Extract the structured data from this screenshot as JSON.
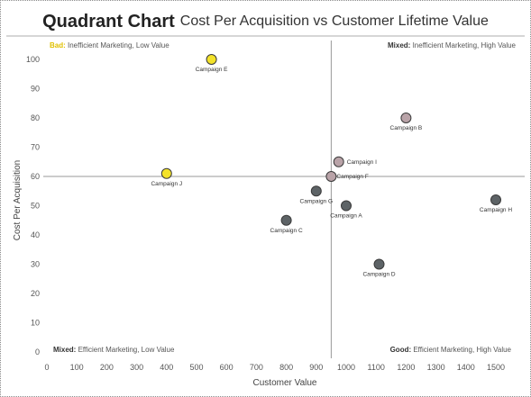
{
  "header": {
    "title": "Quadrant Chart",
    "subtitle": "Cost Per Acquisition vs Customer Lifetime Value"
  },
  "quadrants": {
    "top_left": {
      "key": "Bad:",
      "text": "Inefficient Marketing, Low Value",
      "key_color": "#e0c000"
    },
    "top_right": {
      "key": "Mixed:",
      "text": "Inefficient Marketing, High Value"
    },
    "bottom_left": {
      "key": "Mixed:",
      "text": "Efficient Marketing, Low Value"
    },
    "bottom_right": {
      "key": "Good:",
      "text": "Efficient Marketing, High Value"
    }
  },
  "chart_data": {
    "type": "scatter",
    "title": "Quadrant Chart",
    "subtitle": "Cost Per Acquisition vs Customer Lifetime Value",
    "xlabel": "Customer Value",
    "ylabel": "Cost Per Acquisition",
    "xlim": [
      0,
      1500
    ],
    "ylim": [
      0,
      100
    ],
    "xticks": [
      0,
      100,
      200,
      300,
      400,
      500,
      600,
      700,
      800,
      900,
      1000,
      1100,
      1200,
      1300,
      1400,
      1500
    ],
    "yticks": [
      0,
      10,
      20,
      30,
      40,
      50,
      60,
      70,
      80,
      90,
      100
    ],
    "grid": false,
    "reference_lines": {
      "x": 950,
      "y": 60
    },
    "colors": {
      "bad": "#f3e22a",
      "mixed": "#b9a3a8",
      "good": "#5d6366",
      "reference": "#9a9a9a"
    },
    "points": [
      {
        "label": "Campaign A",
        "x": 1000,
        "y": 50,
        "group": "good"
      },
      {
        "label": "Campaign B",
        "x": 1200,
        "y": 80,
        "group": "mixed"
      },
      {
        "label": "Campaign C",
        "x": 800,
        "y": 45,
        "group": "good"
      },
      {
        "label": "Campaign D",
        "x": 1110,
        "y": 30,
        "group": "good"
      },
      {
        "label": "Campaign E",
        "x": 550,
        "y": 100,
        "group": "bad"
      },
      {
        "label": "Campaign F",
        "x": 950,
        "y": 60,
        "group": "mixed"
      },
      {
        "label": "Campaign G",
        "x": 900,
        "y": 55,
        "group": "good"
      },
      {
        "label": "Campaign H",
        "x": 1500,
        "y": 52,
        "group": "good"
      },
      {
        "label": "Campaign I",
        "x": 975,
        "y": 65,
        "group": "mixed"
      },
      {
        "label": "Campaign J",
        "x": 400,
        "y": 61,
        "group": "bad"
      }
    ]
  }
}
